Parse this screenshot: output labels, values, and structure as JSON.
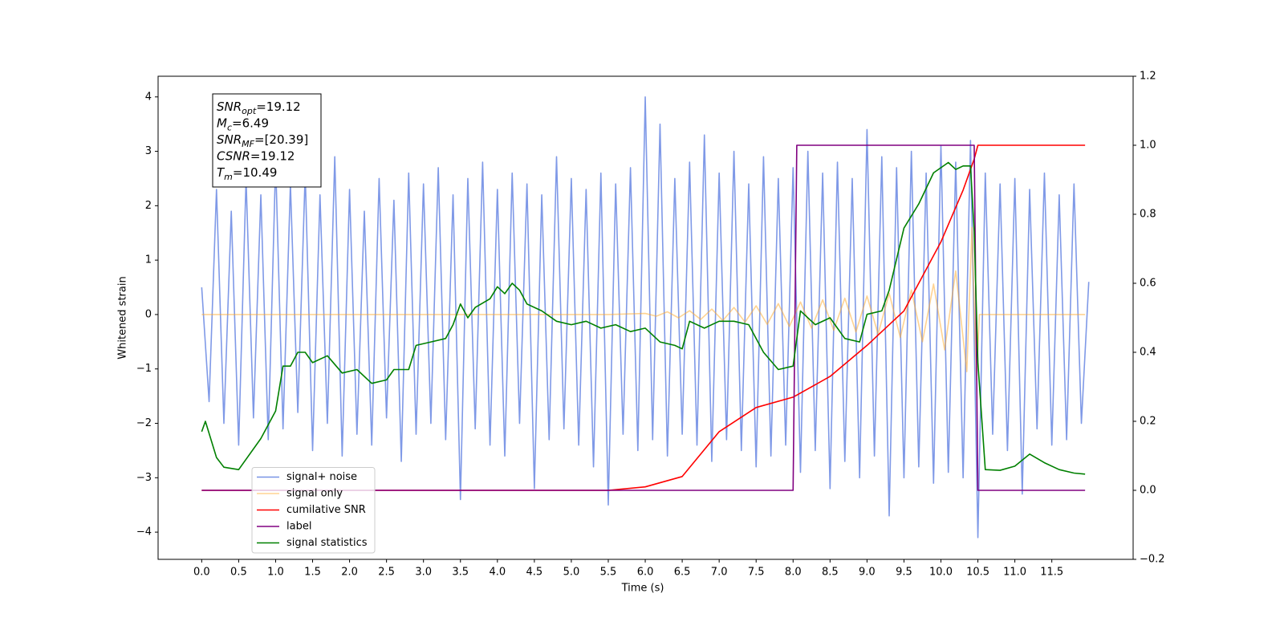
{
  "chart_data": {
    "type": "line",
    "xlabel": "Time (s)",
    "ylabel": "Whitened strain",
    "xlim": [
      -0.59,
      12.6
    ],
    "ylim": [
      -4.5,
      4.38
    ],
    "y2lim": [
      -0.2,
      1.2
    ],
    "xticks": [
      {
        "value": 0,
        "label": "0.0"
      },
      0.5,
      {
        "value": 1,
        "label": "1.0"
      },
      1.5,
      {
        "value": 2,
        "label": "2.0"
      },
      2.5,
      {
        "value": 3,
        "label": "3.0"
      },
      3.5,
      {
        "value": 4,
        "label": "4.0"
      },
      4.5,
      {
        "value": 5,
        "label": "5.0"
      },
      5.5,
      {
        "value": 6,
        "label": "6.0"
      },
      6.5,
      {
        "value": 7,
        "label": "7.0"
      },
      7.5,
      {
        "value": 8,
        "label": "8.0"
      },
      8.5,
      {
        "value": 9,
        "label": "9.0"
      },
      9.5,
      {
        "value": 10,
        "label": "10.0"
      },
      10.5,
      {
        "value": 11,
        "label": "11.0"
      },
      11.5
    ],
    "yticks": [
      {
        "value": -4,
        "label": "−4"
      },
      {
        "value": -3,
        "label": "−3"
      },
      {
        "value": -2,
        "label": "−2"
      },
      {
        "value": -1,
        "label": "−1"
      },
      0,
      1,
      2,
      3,
      4
    ],
    "y2ticks": [
      {
        "value": -0.2,
        "label": "−0.2"
      },
      {
        "value": 0,
        "label": "0.0"
      },
      0.2,
      0.4,
      0.6,
      0.8,
      {
        "value": 1,
        "label": "1.0"
      },
      1.2
    ],
    "grid": false,
    "legend": "lower left",
    "annotation": [
      {
        "symbol": "SNR",
        "subscript": "opt",
        "text": "=19.12"
      },
      {
        "symbol": "M",
        "subscript": "c",
        "text": "=6.49"
      },
      {
        "symbol": "SNR",
        "subscript": "MF",
        "text": "=[20.39]"
      },
      {
        "symbol": "CSNR",
        "text": "=19.12"
      },
      {
        "symbol": "T",
        "subscript": "m",
        "text": "=10.49"
      }
    ],
    "series": [
      {
        "name": "signal+ noise",
        "color": "#7893e6",
        "x": [
          0,
          0.1,
          0.2,
          0.3,
          0.4,
          0.5,
          0.6,
          0.7,
          0.8,
          0.9,
          1,
          1.1,
          1.2,
          1.3,
          1.4,
          1.5,
          1.6,
          1.7,
          1.8,
          1.9,
          2,
          2.1,
          2.2,
          2.3,
          2.4,
          2.5,
          2.6,
          2.7,
          2.8,
          2.9,
          3,
          3.1,
          3.2,
          3.3,
          3.4,
          3.5,
          3.6,
          3.7,
          3.8,
          3.9,
          4,
          4.1,
          4.2,
          4.3,
          4.4,
          4.5,
          4.6,
          4.7,
          4.8,
          4.9,
          5,
          5.1,
          5.2,
          5.3,
          5.4,
          5.5,
          5.6,
          5.7,
          5.8,
          5.9,
          6,
          6.1,
          6.2,
          6.3,
          6.4,
          6.5,
          6.6,
          6.7,
          6.8,
          6.9,
          7,
          7.1,
          7.2,
          7.3,
          7.4,
          7.5,
          7.6,
          7.7,
          7.8,
          7.9,
          8,
          8.1,
          8.2,
          8.3,
          8.4,
          8.5,
          8.6,
          8.7,
          8.8,
          8.9,
          9,
          9.1,
          9.2,
          9.3,
          9.4,
          9.5,
          9.6,
          9.7,
          9.8,
          9.9,
          10,
          10.1,
          10.2,
          10.3,
          10.4,
          10.5,
          10.6,
          10.7,
          10.8,
          10.9,
          11,
          11.1,
          11.2,
          11.3,
          11.4,
          11.5,
          11.6,
          11.7,
          11.8,
          11.9,
          12
        ],
        "values": [
          0.5,
          -1.6,
          2.3,
          -2.0,
          1.9,
          -2.4,
          2.5,
          -1.9,
          2.2,
          -2.3,
          2.8,
          -2.1,
          2.4,
          -1.8,
          2.6,
          -2.5,
          2.2,
          -2.0,
          2.9,
          -2.6,
          2.3,
          -2.2,
          1.9,
          -2.4,
          2.5,
          -1.9,
          2.1,
          -2.7,
          2.6,
          -2.2,
          2.4,
          -2.0,
          2.7,
          -2.3,
          2.2,
          -3.4,
          2.5,
          -2.1,
          2.8,
          -2.4,
          2.3,
          -2.6,
          2.6,
          -2.0,
          2.4,
          -3.2,
          2.2,
          -2.3,
          2.9,
          -2.1,
          2.5,
          -2.4,
          2.3,
          -2.8,
          2.6,
          -3.5,
          2.4,
          -2.2,
          2.7,
          -2.5,
          4.0,
          -2.3,
          3.5,
          -2.6,
          2.5,
          -2.2,
          2.8,
          -2.4,
          3.3,
          -2.7,
          2.6,
          -2.3,
          3.0,
          -2.5,
          2.4,
          -2.8,
          2.9,
          -2.6,
          2.5,
          -2.4,
          2.7,
          -2.9,
          3.0,
          -2.5,
          2.6,
          -3.2,
          2.8,
          -2.7,
          2.5,
          -3.0,
          3.4,
          -2.6,
          2.9,
          -3.7,
          2.7,
          -3.0,
          3.0,
          -2.8,
          2.6,
          -3.1,
          3.1,
          -2.9,
          2.8,
          -3.0,
          3.2,
          -4.1,
          2.6,
          -2.2,
          2.4,
          -2.5,
          2.5,
          -3.3,
          2.3,
          -2.1,
          2.6,
          -2.4,
          2.2,
          -2.3,
          2.4,
          -2.0,
          0.6
        ]
      },
      {
        "name": "signal only",
        "color": "#ffa726",
        "x": [
          0,
          5.5,
          6.0,
          6.15,
          6.3,
          6.45,
          6.6,
          6.75,
          6.9,
          7.05,
          7.2,
          7.35,
          7.5,
          7.65,
          7.8,
          7.95,
          8.1,
          8.25,
          8.4,
          8.55,
          8.7,
          8.85,
          9.0,
          9.15,
          9.3,
          9.45,
          9.6,
          9.75,
          9.9,
          10.05,
          10.2,
          10.35,
          10.42,
          10.48,
          10.52,
          11.95
        ],
        "values": [
          0,
          0,
          0.02,
          -0.03,
          0.05,
          -0.06,
          0.07,
          -0.09,
          0.1,
          -0.11,
          0.13,
          -0.14,
          0.16,
          -0.18,
          0.2,
          -0.22,
          0.23,
          -0.25,
          0.27,
          -0.29,
          0.3,
          -0.32,
          0.34,
          -0.36,
          0.39,
          -0.42,
          0.45,
          -0.5,
          0.56,
          -0.65,
          0.8,
          -1.05,
          1.6,
          -1.2,
          0,
          0
        ]
      },
      {
        "name": "cumilative SNR",
        "color": "#ff0000",
        "axis": "y2",
        "x": [
          0,
          5.5,
          6.0,
          6.5,
          7.0,
          7.5,
          8.0,
          8.5,
          9.0,
          9.5,
          10.0,
          10.3,
          10.45,
          10.5,
          11.95
        ],
        "values": [
          0,
          0,
          0.01,
          0.04,
          0.17,
          0.24,
          0.27,
          0.33,
          0.42,
          0.52,
          0.72,
          0.87,
          0.96,
          1.0,
          1.0
        ]
      },
      {
        "name": "label",
        "color": "#800080",
        "axis": "y2",
        "x": [
          0,
          8.0,
          8.05,
          10.45,
          10.5,
          11.95
        ],
        "values": [
          0,
          0,
          1,
          1,
          0,
          0
        ]
      },
      {
        "name": "signal statistics",
        "color": "#008000",
        "axis": "y2",
        "x": [
          0,
          0.05,
          0.2,
          0.3,
          0.5,
          0.8,
          1.0,
          1.1,
          1.2,
          1.3,
          1.4,
          1.5,
          1.7,
          1.9,
          2.1,
          2.3,
          2.5,
          2.6,
          2.8,
          2.9,
          3.1,
          3.3,
          3.4,
          3.5,
          3.6,
          3.7,
          3.9,
          4.0,
          4.1,
          4.2,
          4.3,
          4.4,
          4.6,
          4.8,
          5.0,
          5.2,
          5.4,
          5.6,
          5.8,
          6.0,
          6.2,
          6.4,
          6.5,
          6.6,
          6.8,
          7.0,
          7.2,
          7.4,
          7.6,
          7.8,
          8.0,
          8.1,
          8.3,
          8.5,
          8.7,
          8.9,
          9.0,
          9.2,
          9.3,
          9.5,
          9.7,
          9.9,
          10.1,
          10.2,
          10.3,
          10.4,
          10.45,
          10.5,
          10.6,
          10.8,
          11.0,
          11.2,
          11.4,
          11.6,
          11.8,
          11.95
        ],
        "values": [
          0.17,
          0.2,
          0.095,
          0.067,
          0.06,
          0.15,
          0.23,
          0.36,
          0.36,
          0.4,
          0.4,
          0.37,
          0.39,
          0.34,
          0.35,
          0.31,
          0.32,
          0.35,
          0.35,
          0.42,
          0.43,
          0.44,
          0.48,
          0.54,
          0.5,
          0.53,
          0.555,
          0.59,
          0.57,
          0.6,
          0.58,
          0.54,
          0.52,
          0.49,
          0.48,
          0.49,
          0.47,
          0.48,
          0.46,
          0.47,
          0.43,
          0.42,
          0.41,
          0.49,
          0.47,
          0.49,
          0.49,
          0.48,
          0.4,
          0.35,
          0.36,
          0.52,
          0.48,
          0.5,
          0.44,
          0.43,
          0.51,
          0.52,
          0.58,
          0.76,
          0.83,
          0.92,
          0.95,
          0.93,
          0.94,
          0.94,
          0.75,
          0.37,
          0.06,
          0.058,
          0.07,
          0.105,
          0.08,
          0.06,
          0.05,
          0.047
        ]
      }
    ]
  }
}
